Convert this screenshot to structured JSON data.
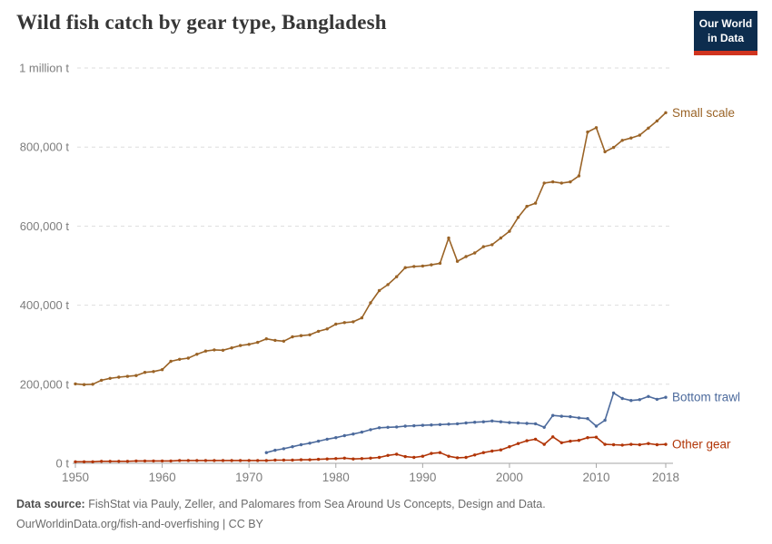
{
  "header": {
    "title": "Wild fish catch by gear type, Bangladesh",
    "logo": {
      "line1": "Our World",
      "line2": "in Data",
      "bg_color": "#0d2d4e",
      "accent_color": "#d0341f"
    }
  },
  "footer": {
    "source_label": "Data source:",
    "source_text": " FishStat via Pauly, Zeller, and Palomares from Sea Around Us Concepts, Design and Data.",
    "license_line": "OurWorldinData.org/fish-and-overfishing | CC BY"
  },
  "chart_data": {
    "type": "line",
    "title": "Wild fish catch by gear type, Bangladesh",
    "xlabel": "",
    "ylabel": "tonnes",
    "xlim": [
      1950,
      2018
    ],
    "ylim": [
      0,
      1000000
    ],
    "grid": "horizontal-dashed",
    "legend_position": "right-of-line-ends",
    "xticks": [
      1950,
      1960,
      1970,
      1980,
      1990,
      2000,
      2010,
      2018
    ],
    "yticks": [
      {
        "value": 0,
        "label": "0 t"
      },
      {
        "value": 200000,
        "label": "200,000 t"
      },
      {
        "value": 400000,
        "label": "400,000 t"
      },
      {
        "value": 600000,
        "label": "600,000 t"
      },
      {
        "value": 800000,
        "label": "800,000 t"
      },
      {
        "value": 1000000,
        "label": "1 million t"
      }
    ],
    "series": [
      {
        "name": "Small scale",
        "color": "#9a6326",
        "start_year": 1950,
        "values": [
          201000,
          199000,
          200000,
          210000,
          215000,
          218000,
          220000,
          222000,
          230000,
          232000,
          237000,
          258000,
          263000,
          266000,
          276000,
          284000,
          287000,
          286000,
          292000,
          298000,
          301000,
          306000,
          315000,
          311000,
          309000,
          320000,
          323000,
          325000,
          334000,
          340000,
          352000,
          356000,
          358000,
          368000,
          406000,
          437000,
          452000,
          472000,
          495000,
          498000,
          499000,
          502000,
          506000,
          570000,
          511000,
          523000,
          532000,
          548000,
          553000,
          570000,
          587000,
          622000,
          650000,
          658000,
          709000,
          712000,
          709000,
          712000,
          727000,
          838000,
          849000,
          788000,
          799000,
          817000,
          823000,
          830000,
          848000,
          866000,
          887000
        ]
      },
      {
        "name": "Bottom trawl",
        "color": "#4c6a9c",
        "start_year": 1972,
        "values": [
          27000,
          33000,
          37000,
          42000,
          47000,
          51000,
          56000,
          61000,
          65000,
          70000,
          74000,
          79000,
          85000,
          90000,
          91000,
          92000,
          94000,
          95000,
          96000,
          97000,
          98000,
          99000,
          100000,
          102000,
          104000,
          105000,
          107000,
          105000,
          103000,
          102000,
          101000,
          100000,
          91000,
          121000,
          119000,
          118000,
          115000,
          113000,
          94000,
          109000,
          178000,
          164000,
          159000,
          161000,
          169000,
          162000,
          167000
        ]
      },
      {
        "name": "Other gear",
        "color": "#b13507",
        "start_year": 1950,
        "values": [
          4000,
          4000,
          4000,
          5000,
          5000,
          5000,
          5000,
          6000,
          6000,
          6000,
          6000,
          6000,
          7000,
          7000,
          7000,
          7000,
          7000,
          7000,
          7000,
          7000,
          7000,
          7000,
          7000,
          8000,
          8000,
          8000,
          9000,
          9000,
          10000,
          11000,
          12000,
          13000,
          11000,
          12000,
          13000,
          15000,
          20000,
          23000,
          17000,
          15000,
          18000,
          25000,
          27000,
          18000,
          14000,
          15000,
          21000,
          27000,
          31000,
          34000,
          42000,
          50000,
          57000,
          61000,
          48000,
          67000,
          52000,
          56000,
          58000,
          65000,
          66000,
          48000,
          47000,
          46000,
          48000,
          47000,
          50000,
          47000,
          48000
        ]
      }
    ],
    "style": {
      "gridline_color": "#dedede",
      "axis_color": "#a6a6a6",
      "tick_label_color": "#7d7d7d"
    }
  }
}
